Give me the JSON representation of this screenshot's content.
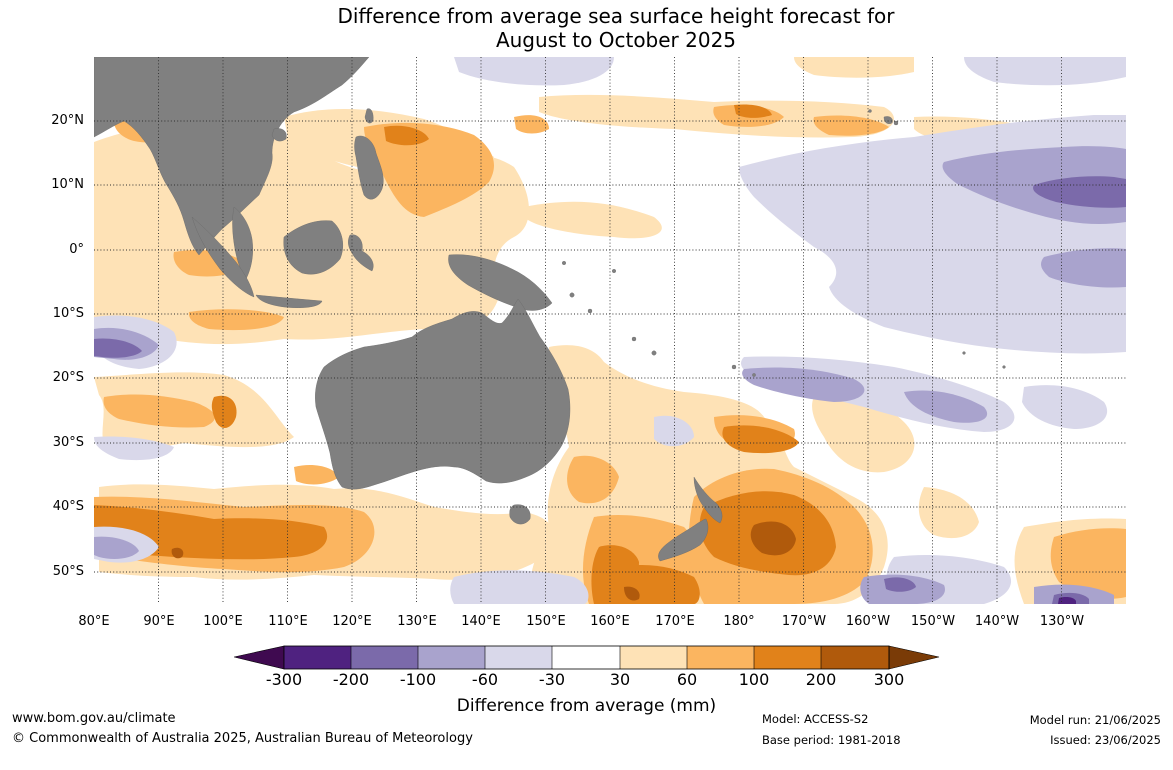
{
  "title_line1": "Difference from average sea surface height forecast for",
  "title_line2": "August to October 2025",
  "lat_labels": [
    "20°N",
    "10°N",
    "0°",
    "10°S",
    "20°S",
    "30°S",
    "40°S",
    "50°S"
  ],
  "lon_labels": [
    "80°E",
    "90°E",
    "100°E",
    "110°E",
    "120°E",
    "130°E",
    "140°E",
    "150°E",
    "160°E",
    "170°E",
    "180°",
    "170°W",
    "160°W",
    "150°W",
    "140°W",
    "130°W"
  ],
  "colorbar": {
    "labels": [
      "-300",
      "-200",
      "-100",
      "-60",
      "-30",
      "30",
      "60",
      "100",
      "200",
      "300"
    ],
    "colors": [
      "#3f0a50",
      "#4f2280",
      "#7b6aaa",
      "#a9a3cd",
      "#d9d8ea",
      "#ffffff",
      "#fee2b6",
      "#fbb560",
      "#e1821a",
      "#b05a0c",
      "#7a3b07"
    ],
    "title": "Difference from average (mm)"
  },
  "footer": {
    "website": "www.bom.gov.au/climate",
    "copyright": "© Commonwealth of Australia 2025, Australian Bureau of Meteorology",
    "model": "Model: ACCESS-S2",
    "base_period": "Base period: 1981-2018",
    "model_run": "Model run: 21/06/2025",
    "issued": "Issued: 23/06/2025"
  },
  "map": {
    "extent": {
      "lon_min": 80,
      "lon_max": 240,
      "lat_min": -55,
      "lat_max": 30
    },
    "land_color": "#808080",
    "grid": "dotted",
    "anomaly_regions": [
      {
        "level": "60",
        "color": "#fee2b6",
        "area": "Maritime continent and eastern Indian Ocean"
      },
      {
        "level": "100",
        "color": "#fbb560",
        "area": "Philippine Sea"
      },
      {
        "level": "200",
        "color": "#e1821a",
        "area": "Southern Indian Ocean near 45°S"
      },
      {
        "level": "200",
        "color": "#e1821a",
        "area": "Tasman Sea and east of New Zealand"
      },
      {
        "level": "300",
        "color": "#b05a0c",
        "area": "East of New Zealand near 45°S 175°W"
      },
      {
        "level": "-30",
        "color": "#d9d8ea",
        "area": "Central equatorial Pacific"
      },
      {
        "level": "-60",
        "color": "#a9a3cd",
        "area": "North-east tropical Pacific near 10°N"
      },
      {
        "level": "-100",
        "color": "#7b6aaa",
        "area": "North-east tropical Pacific near 10°N 130°W"
      }
    ]
  }
}
